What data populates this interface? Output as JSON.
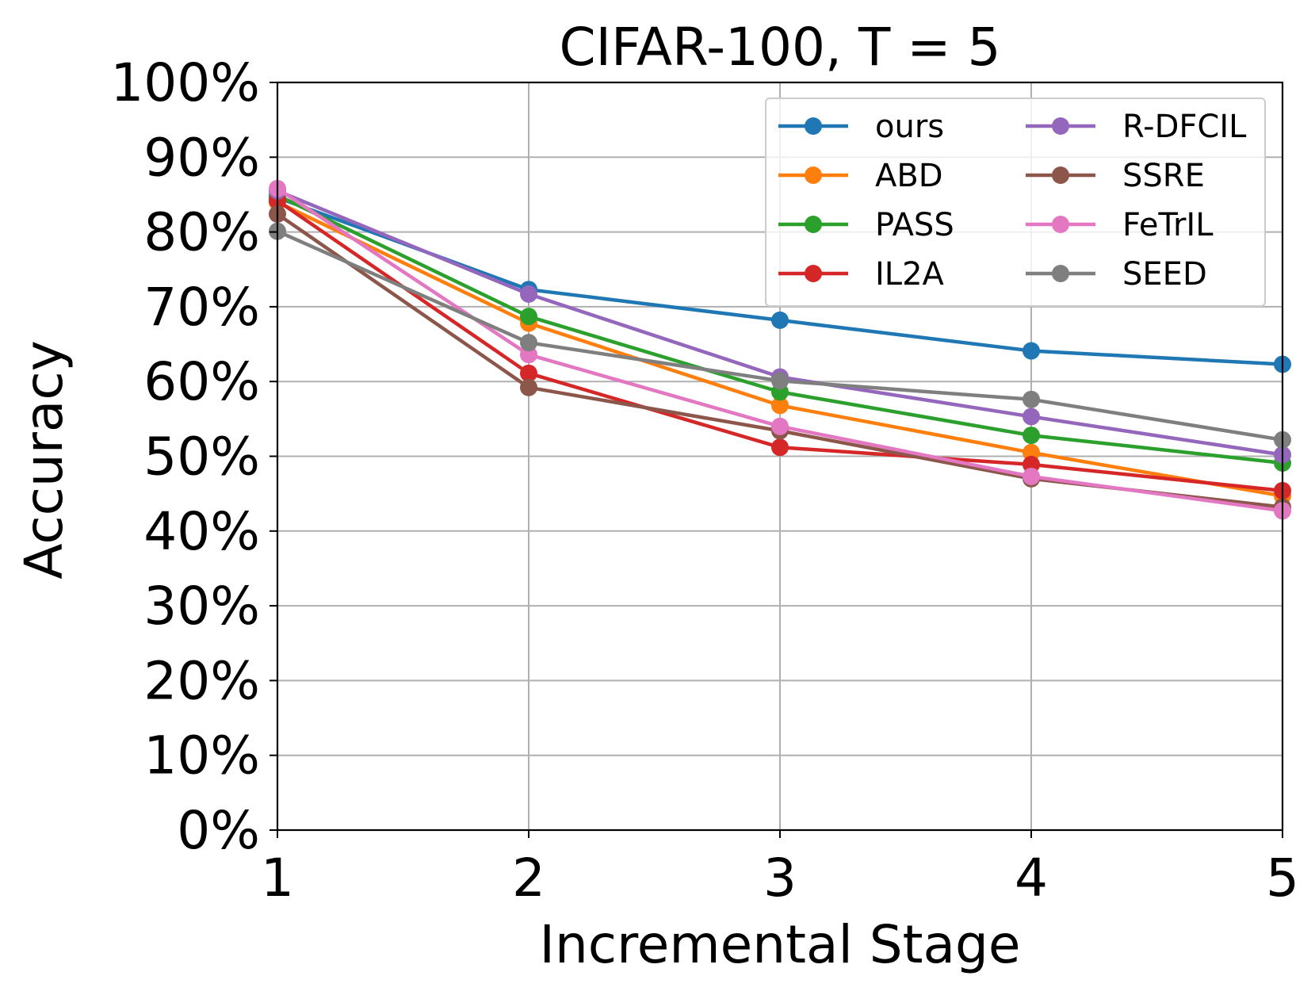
{
  "chart_data": {
    "type": "line",
    "title": "CIFAR-100, T = 5",
    "xlabel": "Incremental Stage",
    "ylabel": "Accuracy",
    "x": [
      1,
      2,
      3,
      4,
      5
    ],
    "x_tick_labels": [
      "1",
      "2",
      "3",
      "4",
      "5"
    ],
    "xlim": [
      1,
      5
    ],
    "ylim": [
      0,
      100
    ],
    "y_ticks": [
      0,
      10,
      20,
      30,
      40,
      50,
      60,
      70,
      80,
      90,
      100
    ],
    "y_tick_labels": [
      "0%",
      "10%",
      "20%",
      "30%",
      "40%",
      "50%",
      "60%",
      "70%",
      "80%",
      "90%",
      "100%"
    ],
    "grid": true,
    "legend_position": "top-right",
    "legend_columns": 2,
    "series": [
      {
        "name": "ours",
        "color": "#1f77b4",
        "values": [
          84.6,
          72.3,
          68.2,
          64.1,
          62.3
        ]
      },
      {
        "name": "ABD",
        "color": "#ff7f0e",
        "values": [
          84.0,
          67.8,
          56.8,
          50.5,
          44.7
        ]
      },
      {
        "name": "PASS",
        "color": "#2ca02c",
        "values": [
          84.9,
          68.7,
          58.6,
          52.8,
          49.1
        ]
      },
      {
        "name": "IL2A",
        "color": "#d62728",
        "values": [
          84.2,
          61.1,
          51.2,
          48.9,
          45.4
        ]
      },
      {
        "name": "R-DFCIL",
        "color": "#9467bd",
        "values": [
          85.5,
          71.7,
          60.6,
          55.3,
          50.2
        ]
      },
      {
        "name": "SSRE",
        "color": "#8c564b",
        "values": [
          82.4,
          59.2,
          53.4,
          47.0,
          43.2
        ]
      },
      {
        "name": "FeTrIL",
        "color": "#e377c2",
        "values": [
          85.8,
          63.6,
          54.0,
          47.3,
          42.7
        ]
      },
      {
        "name": "SEED",
        "color": "#7f7f7f",
        "values": [
          80.1,
          65.2,
          60.1,
          57.6,
          52.2
        ]
      }
    ]
  }
}
